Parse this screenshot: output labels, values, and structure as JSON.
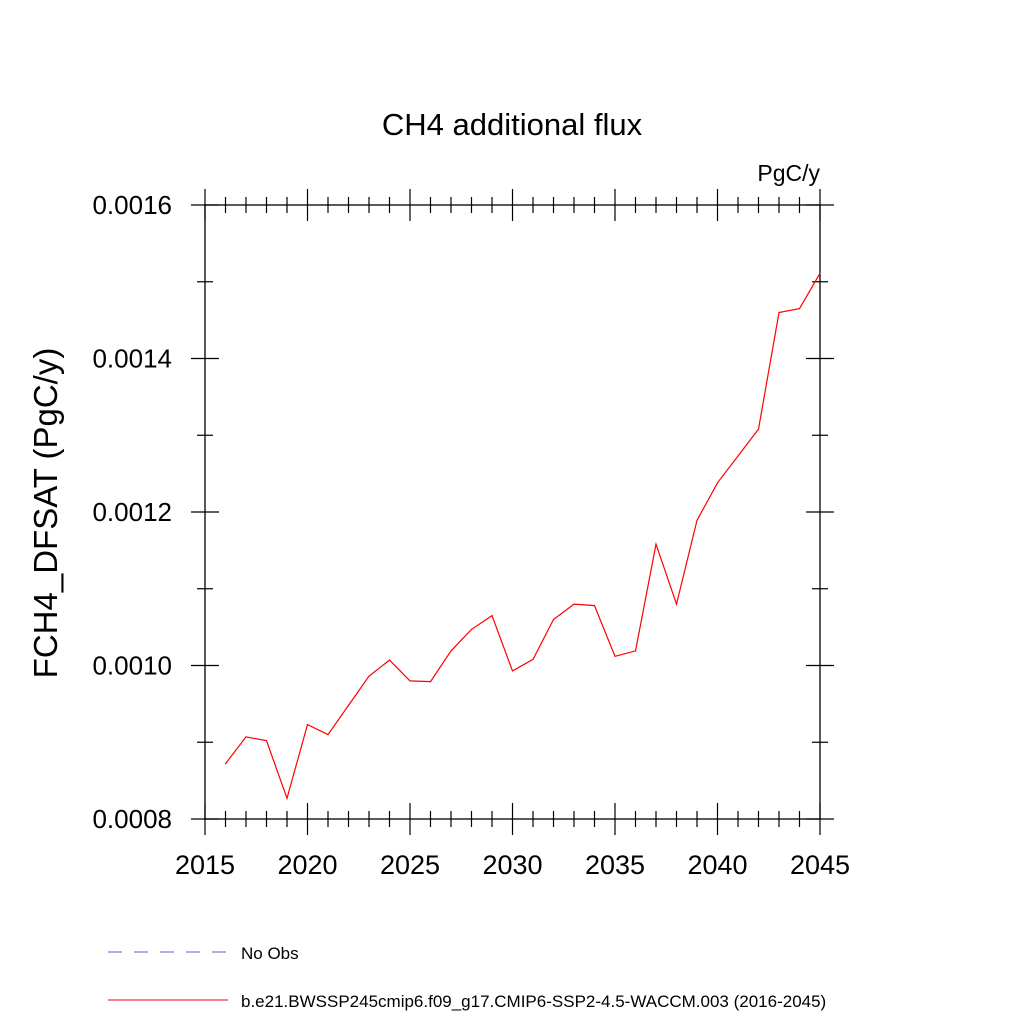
{
  "chart_data": {
    "type": "line",
    "title": "CH4 additional flux",
    "units": "PgC/y",
    "xlabel": "",
    "ylabel": "FCH4_DFSAT  (PgC/y)",
    "xlim": [
      2015,
      2045
    ],
    "ylim": [
      0.0008,
      0.0016
    ],
    "x_ticks": [
      2015,
      2020,
      2025,
      2030,
      2035,
      2040,
      2045
    ],
    "x_tick_labels": [
      "2015",
      "2020",
      "2025",
      "2030",
      "2035",
      "2040",
      "2045"
    ],
    "y_ticks": [
      0.0008,
      0.001,
      0.0012,
      0.0014,
      0.0016
    ],
    "y_tick_labels": [
      "0.0008",
      "0.0010",
      "0.0012",
      "0.0014",
      "0.0016"
    ],
    "y_minor_step": 0.0001,
    "x_minor_step": 1,
    "grid": false,
    "series": [
      {
        "name": "b.e21.BWSSP245cmip6.f09_g17.CMIP6-SSP2-4.5-WACCM.003 (2016-2045)",
        "color": "#ff0000",
        "dash": "solid",
        "x": [
          2016,
          2017,
          2018,
          2019,
          2020,
          2021,
          2022,
          2023,
          2024,
          2025,
          2026,
          2027,
          2028,
          2029,
          2030,
          2031,
          2032,
          2033,
          2034,
          2035,
          2036,
          2037,
          2038,
          2039,
          2040,
          2041,
          2042,
          2043,
          2044,
          2045
        ],
        "values": [
          0.000872,
          0.000907,
          0.000902,
          0.000827,
          0.000923,
          0.00091,
          0.000948,
          0.000986,
          0.001007,
          0.00098,
          0.000979,
          0.001019,
          0.001047,
          0.001065,
          0.000993,
          0.001008,
          0.00106,
          0.00108,
          0.001078,
          0.001012,
          0.001019,
          0.001158,
          0.00108,
          0.001189,
          0.001238,
          0.001273,
          0.001308,
          0.00146,
          0.001465,
          0.001511
        ]
      }
    ],
    "legend": [
      {
        "label": "No Obs",
        "color": "#6a5acd",
        "dash": "dashed"
      },
      {
        "label": "b.e21.BWSSP245cmip6.f09_g17.CMIP6-SSP2-4.5-WACCM.003 (2016-2045)",
        "color": "#ff0000",
        "dash": "solid"
      }
    ],
    "legend_position": "bottom-left"
  }
}
